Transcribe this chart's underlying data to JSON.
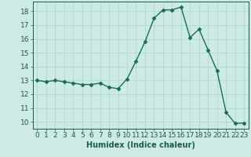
{
  "x": [
    0,
    1,
    2,
    3,
    4,
    5,
    6,
    7,
    8,
    9,
    10,
    11,
    12,
    13,
    14,
    15,
    16,
    17,
    18,
    19,
    20,
    21,
    22,
    23
  ],
  "y": [
    13.0,
    12.9,
    13.0,
    12.9,
    12.8,
    12.7,
    12.7,
    12.8,
    12.5,
    12.4,
    13.1,
    14.4,
    15.8,
    17.5,
    18.1,
    18.1,
    18.3,
    16.1,
    16.7,
    15.2,
    13.7,
    10.7,
    9.9,
    9.9
  ],
  "xlabel": "Humidex (Indice chaleur)",
  "xlim": [
    -0.5,
    23.5
  ],
  "ylim": [
    9.5,
    18.7
  ],
  "yticks": [
    10,
    11,
    12,
    13,
    14,
    15,
    16,
    17,
    18
  ],
  "xticks": [
    0,
    1,
    2,
    3,
    4,
    5,
    6,
    7,
    8,
    9,
    10,
    11,
    12,
    13,
    14,
    15,
    16,
    17,
    18,
    19,
    20,
    21,
    22,
    23
  ],
  "line_color": "#1a6b5a",
  "marker": "D",
  "marker_size": 2.5,
  "bg_color": "#ceeae6",
  "grid_color": "#a8d4cf",
  "axis_color": "#1a5c4e",
  "xlabel_color": "#1a5c4e",
  "label_fontsize": 7,
  "tick_fontsize": 6.5
}
